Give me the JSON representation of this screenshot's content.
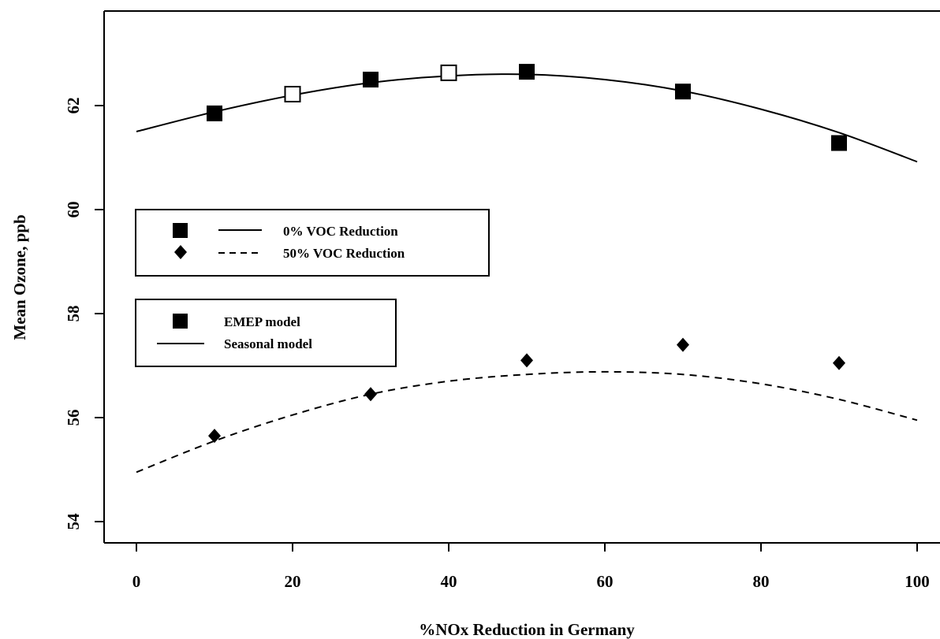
{
  "chart_data": {
    "type": "scatter",
    "title": "",
    "xlabel": "%NOx Reduction in Germany",
    "ylabel": "Mean Ozone, ppb",
    "xlim": [
      0,
      100
    ],
    "ylim": [
      54,
      63.5
    ],
    "x_ticks": [
      "0",
      "20",
      "40",
      "60",
      "80",
      "100"
    ],
    "y_ticks": [
      "54",
      "56",
      "58",
      "60",
      "62"
    ],
    "grid": false,
    "series": [
      {
        "name": "0% VOC Reduction",
        "kind": "EMEP model",
        "marker": "square",
        "x": [
          10,
          30,
          50,
          70,
          90
        ],
        "y": [
          61.85,
          62.5,
          62.65,
          62.27,
          61.28
        ]
      },
      {
        "name": "0% VOC Reduction",
        "kind": "EMEP model (open markers)",
        "marker": "open-square",
        "x": [
          20,
          40
        ],
        "y": [
          62.22,
          62.63
        ]
      },
      {
        "name": "0% VOC Reduction",
        "kind": "Seasonal model",
        "line": "solid",
        "x": [
          0,
          10,
          20,
          30,
          40,
          50,
          60,
          70,
          80,
          90,
          100
        ],
        "y": [
          61.5,
          61.88,
          62.2,
          62.44,
          62.57,
          62.6,
          62.5,
          62.28,
          61.93,
          61.48,
          60.92
        ]
      },
      {
        "name": "50% VOC Reduction",
        "kind": "EMEP model",
        "marker": "diamond",
        "x": [
          10,
          30,
          50,
          70,
          90
        ],
        "y": [
          55.65,
          56.45,
          57.1,
          57.4,
          57.05
        ]
      },
      {
        "name": "50% VOC Reduction",
        "kind": "Seasonal model",
        "line": "dashed",
        "x": [
          0,
          10,
          20,
          30,
          40,
          50,
          60,
          70,
          80,
          90,
          100
        ],
        "y": [
          54.95,
          55.55,
          56.05,
          56.45,
          56.7,
          56.83,
          56.88,
          56.83,
          56.65,
          56.35,
          55.95
        ]
      }
    ],
    "legends": [
      {
        "placement": "middle-left",
        "entries": [
          {
            "symbol": "square",
            "line": "solid",
            "label": "0% VOC Reduction"
          },
          {
            "symbol": "diamond",
            "line": "dashed",
            "label": "50% VOC Reduction"
          }
        ]
      },
      {
        "placement": "lower-left",
        "entries": [
          {
            "symbol": "square",
            "line": "none",
            "label": "EMEP model"
          },
          {
            "symbol": "none",
            "line": "solid",
            "label": "Seasonal model"
          }
        ]
      }
    ]
  }
}
